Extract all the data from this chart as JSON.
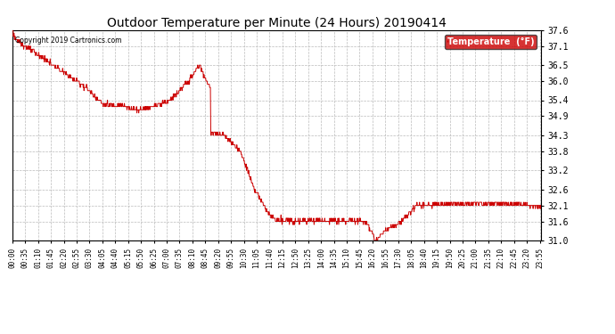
{
  "title": "Outdoor Temperature per Minute (24 Hours) 20190414",
  "copyright": "Copyright 2019 Cartronics.com",
  "legend_label": "Temperature  (°F)",
  "line_color": "#cc0000",
  "legend_bg": "#cc0000",
  "legend_text_color": "#ffffff",
  "background_color": "#ffffff",
  "grid_color": "#bbbbbb",
  "ylim": [
    31.0,
    37.6
  ],
  "yticks": [
    31.0,
    31.6,
    32.1,
    32.6,
    33.2,
    33.8,
    34.3,
    34.9,
    35.4,
    36.0,
    36.5,
    37.1,
    37.6
  ],
  "total_minutes": 1440,
  "xtick_interval": 35,
  "xtick_labels": [
    "00:00",
    "00:35",
    "01:10",
    "01:45",
    "02:20",
    "02:55",
    "03:30",
    "04:05",
    "04:40",
    "05:15",
    "05:50",
    "06:25",
    "07:00",
    "07:35",
    "08:10",
    "08:45",
    "09:20",
    "09:55",
    "10:30",
    "11:05",
    "11:40",
    "12:15",
    "12:50",
    "13:25",
    "14:00",
    "14:35",
    "15:10",
    "15:45",
    "16:20",
    "16:55",
    "17:30",
    "18:05",
    "18:40",
    "19:15",
    "19:50",
    "20:25",
    "21:00",
    "21:35",
    "22:10",
    "22:45",
    "23:20",
    "23:55"
  ],
  "figsize": [
    6.9,
    3.75
  ],
  "dpi": 100
}
